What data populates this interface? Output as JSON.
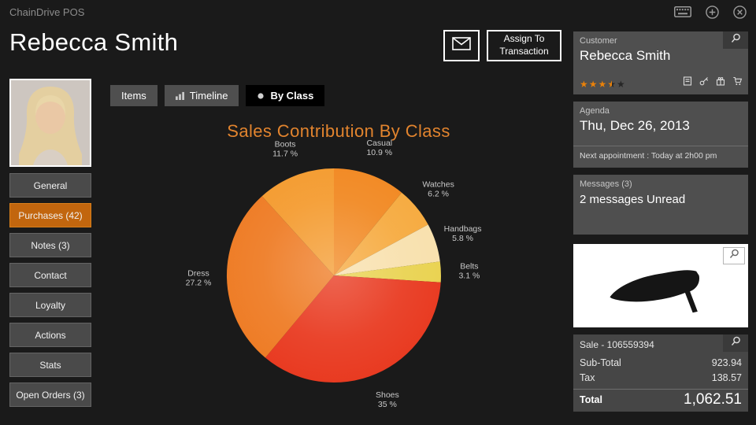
{
  "topbar": {
    "title": "ChainDrive POS",
    "icons": [
      "keyboard-icon",
      "add-icon",
      "close-icon"
    ]
  },
  "header": {
    "customer_name": "Rebecca Smith",
    "email_icon": "envelope-icon",
    "assign_button": "Assign To Transaction"
  },
  "tabs": [
    {
      "label": "Items",
      "selected": false
    },
    {
      "label": "Timeline",
      "icon": "bar-chart-icon",
      "selected": false
    },
    {
      "label": "By Class",
      "icon": "dot-icon",
      "selected": true
    }
  ],
  "sidebar": {
    "items": [
      {
        "label": "General",
        "active": false
      },
      {
        "label": "Purchases (42)",
        "active": true
      },
      {
        "label": "Notes (3)",
        "active": false
      },
      {
        "label": "Contact",
        "active": false
      },
      {
        "label": "Loyalty",
        "active": false
      },
      {
        "label": "Actions",
        "active": false
      },
      {
        "label": "Stats",
        "active": false
      },
      {
        "label": "Open Orders (3)",
        "active": false
      }
    ]
  },
  "chart_data": {
    "type": "pie",
    "title": "Sales Contribution By Class",
    "title_color": "#E2842E",
    "start_angle_deg": -90,
    "direction": "clockwise",
    "label_format": "{value} %",
    "slices": [
      {
        "label": "Casual",
        "value": 10.9,
        "color": "#F1871F"
      },
      {
        "label": "Watches",
        "value": 6.2,
        "color": "#F6A93C"
      },
      {
        "label": "Handbags",
        "value": 5.8,
        "color": "#F8E0AC"
      },
      {
        "label": "Belts",
        "value": 3.1,
        "color": "#E9D24E"
      },
      {
        "label": "Shoes",
        "value": 35,
        "color": "#E8371D"
      },
      {
        "label": "Dress",
        "value": 27.2,
        "color": "#EE7A22"
      },
      {
        "label": "Boots",
        "value": 11.7,
        "color": "#F49A2D"
      }
    ]
  },
  "right_panels": {
    "customer": {
      "label": "Customer",
      "name": "Rebecca Smith",
      "rating": 3.5,
      "rating_max": 5,
      "icons": [
        "note-icon",
        "key-icon",
        "gift-icon",
        "cart-icon"
      ]
    },
    "agenda": {
      "label": "Agenda",
      "date": "Thu, Dec 26, 2013",
      "next_appointment": "Next appointment : Today at 2h00 pm"
    },
    "messages": {
      "label": "Messages (3)",
      "unread_text": "2 messages Unread"
    },
    "product": {
      "image": "black-high-heel-shoe"
    },
    "sale": {
      "title": "Sale - 106559394",
      "rows": [
        {
          "label": "Sub-Total",
          "value": "923.94"
        },
        {
          "label": "Tax",
          "value": "138.57"
        }
      ],
      "total_label": "Total",
      "total_value": "1,062.51"
    }
  }
}
